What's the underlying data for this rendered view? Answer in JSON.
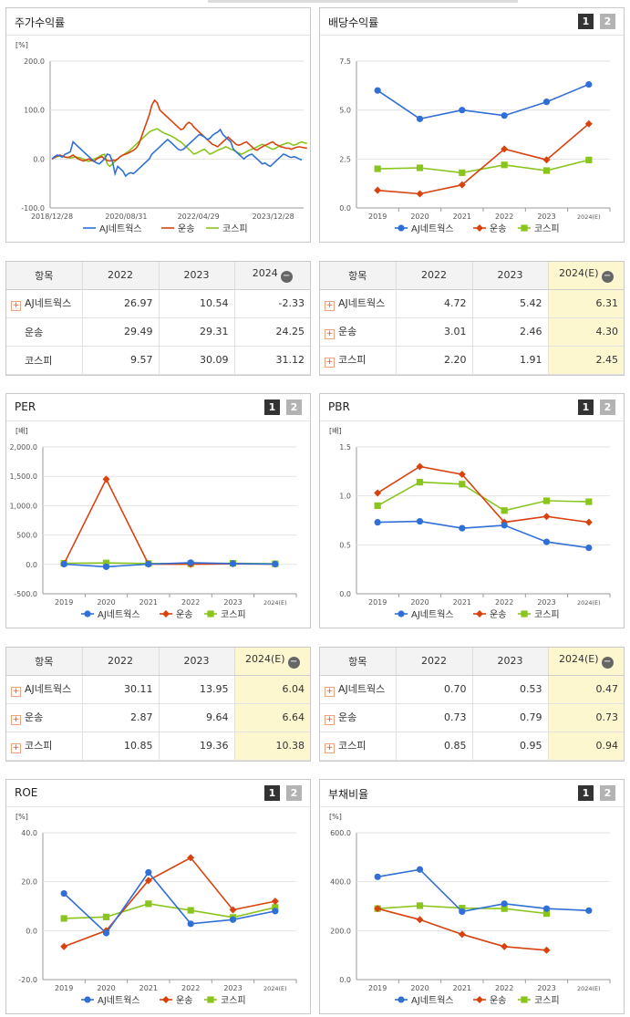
{
  "colors": {
    "ajn": "#2f6fd6",
    "transport": "#d8420f",
    "kospi": "#8ac51e"
  },
  "charts": [
    {
      "id": "stock",
      "title": "주가수익률",
      "pager": [],
      "chart_data": {
        "type": "line",
        "unit": "[%]",
        "x_tick_labels": [
          "2018/12/28",
          "2020/08/31",
          "2022/04/29",
          "2023/12/28"
        ],
        "y_ticks": [
          "200.0",
          "100.0",
          "0.0",
          "-100.0"
        ],
        "ylim": [
          -100,
          200
        ],
        "series": [
          {
            "name": "AJ네트웍스",
            "values": [
              0,
              5,
              8,
              6,
              4,
              10,
              12,
              15,
              35,
              30,
              25,
              20,
              15,
              10,
              5,
              0,
              -5,
              -8,
              -10,
              -5,
              0,
              10,
              8,
              -5,
              -30,
              -15,
              -20,
              -25,
              -35,
              -30,
              -28,
              -30,
              -25,
              -20,
              -15,
              -10,
              -5,
              0,
              10,
              15,
              20,
              25,
              30,
              35,
              40,
              35,
              30,
              25,
              20,
              18,
              20,
              25,
              30,
              35,
              40,
              45,
              50,
              48,
              45,
              40,
              42,
              48,
              52,
              55,
              60,
              50,
              45,
              40,
              35,
              20,
              15,
              10,
              5,
              0,
              5,
              8,
              10,
              5,
              0,
              -5,
              -10,
              -8,
              -12,
              -15,
              -10,
              -5,
              0,
              5,
              10,
              8,
              5,
              3,
              5,
              3,
              0,
              -2
            ]
          },
          {
            "name": "운송",
            "values": [
              0,
              3,
              6,
              8,
              6,
              4,
              3,
              5,
              8,
              4,
              0,
              -2,
              -4,
              -2,
              0,
              -3,
              -5,
              0,
              3,
              5,
              0,
              -3,
              -4,
              -2,
              -3,
              0,
              5,
              8,
              10,
              12,
              15,
              18,
              22,
              30,
              45,
              60,
              75,
              90,
              110,
              120,
              115,
              100,
              95,
              90,
              85,
              80,
              75,
              70,
              65,
              60,
              62,
              70,
              75,
              72,
              65,
              60,
              55,
              50,
              45,
              40,
              35,
              30,
              28,
              25,
              30,
              35,
              40,
              45,
              40,
              35,
              30,
              28,
              30,
              33,
              35,
              30,
              25,
              20,
              18,
              22,
              25,
              28,
              30,
              33,
              35,
              30,
              28,
              25,
              24,
              22,
              22,
              20,
              22,
              24,
              25,
              24,
              23,
              22
            ]
          },
          {
            "name": "코스피",
            "values": [
              0,
              3,
              5,
              7,
              6,
              4,
              3,
              2,
              3,
              5,
              3,
              2,
              0,
              -3,
              -5,
              -3,
              0,
              2,
              5,
              8,
              10,
              -10,
              -15,
              -10,
              -5,
              0,
              5,
              8,
              12,
              15,
              20,
              25,
              30,
              35,
              40,
              45,
              50,
              55,
              58,
              60,
              62,
              58,
              55,
              52,
              50,
              48,
              45,
              42,
              38,
              35,
              30,
              25,
              20,
              15,
              10,
              12,
              15,
              18,
              20,
              15,
              10,
              12,
              15,
              18,
              20,
              22,
              25,
              23,
              20,
              18,
              15,
              12,
              10,
              12,
              15,
              18,
              20,
              22,
              25,
              28,
              30,
              28,
              25,
              22,
              20,
              22,
              25,
              28,
              30,
              32,
              33,
              30,
              28,
              30,
              33,
              35,
              33,
              32
            ]
          }
        ]
      }
    },
    {
      "id": "dividend",
      "title": "배당수익률",
      "pager": [
        "1",
        "2"
      ],
      "chart_data": {
        "type": "line",
        "unit": "",
        "categories": [
          "2019",
          "2020",
          "2021",
          "2022",
          "2023",
          "2024(E)"
        ],
        "y_ticks": [
          "7.5",
          "5.0",
          "2.5",
          "0.0"
        ],
        "ylim": [
          0,
          7.5
        ],
        "series": [
          {
            "name": "AJ네트웍스",
            "values": [
              6.0,
              4.55,
              5.0,
              4.72,
              5.42,
              6.31
            ]
          },
          {
            "name": "운송",
            "values": [
              0.9,
              0.72,
              1.18,
              3.01,
              2.46,
              4.3
            ]
          },
          {
            "name": "코스피",
            "values": [
              2.0,
              2.05,
              1.8,
              2.2,
              1.91,
              2.45
            ]
          }
        ]
      }
    },
    {
      "id": "per",
      "title": "PER",
      "pager": [
        "1",
        "2"
      ],
      "chart_data": {
        "type": "line",
        "unit": "[배]",
        "categories": [
          "2019",
          "2020",
          "2021",
          "2022",
          "2023",
          "2024(E)"
        ],
        "y_ticks": [
          "2,000.0",
          "1,500.0",
          "1,000.0",
          "500.0",
          "0.0",
          "-500.0"
        ],
        "ylim": [
          -500,
          2000
        ],
        "series": [
          {
            "name": "AJ네트웍스",
            "values": [
              5,
              -40,
              5,
              30.11,
              13.95,
              6.04
            ]
          },
          {
            "name": "운송",
            "values": [
              10,
              1450,
              6,
              2.87,
              9.64,
              6.64
            ]
          },
          {
            "name": "코스피",
            "values": [
              20,
              25,
              15,
              10.85,
              19.36,
              10.38
            ]
          }
        ]
      }
    },
    {
      "id": "pbr",
      "title": "PBR",
      "pager": [
        "1",
        "2"
      ],
      "chart_data": {
        "type": "line",
        "unit": "[배]",
        "categories": [
          "2019",
          "2020",
          "2021",
          "2022",
          "2023",
          "2024(E)"
        ],
        "y_ticks": [
          "1.5",
          "1.0",
          "0.5",
          "0.0"
        ],
        "ylim": [
          0,
          1.5
        ],
        "series": [
          {
            "name": "AJ네트웍스",
            "values": [
              0.73,
              0.74,
              0.67,
              0.7,
              0.53,
              0.47
            ]
          },
          {
            "name": "운송",
            "values": [
              1.03,
              1.3,
              1.22,
              0.73,
              0.79,
              0.73
            ]
          },
          {
            "name": "코스피",
            "values": [
              0.9,
              1.14,
              1.12,
              0.85,
              0.95,
              0.94
            ]
          }
        ]
      }
    },
    {
      "id": "roe",
      "title": "ROE",
      "pager": [
        "1",
        "2"
      ],
      "chart_data": {
        "type": "line",
        "unit": "[%]",
        "categories": [
          "2019",
          "2020",
          "2021",
          "2022",
          "2023",
          "2024(E)"
        ],
        "y_ticks": [
          "40.0",
          "20.0",
          "0.0",
          "-20.0"
        ],
        "ylim": [
          -20,
          40
        ],
        "series": [
          {
            "name": "AJ네트웍스",
            "values": [
              15.2,
              -1.0,
              23.8,
              2.8,
              4.5,
              8.0
            ]
          },
          {
            "name": "운송",
            "values": [
              -6.5,
              0.0,
              20.5,
              29.8,
              8.5,
              12.0
            ]
          },
          {
            "name": "코스피",
            "values": [
              5.0,
              5.6,
              11.0,
              8.3,
              5.4,
              9.5
            ]
          }
        ]
      }
    },
    {
      "id": "debt",
      "title": "부채비율",
      "pager": [
        "1",
        "2"
      ],
      "chart_data": {
        "type": "line",
        "unit": "[%]",
        "categories": [
          "2019",
          "2020",
          "2021",
          "2022",
          "2023",
          "2024(E)"
        ],
        "y_ticks": [
          "600.0",
          "400.0",
          "200.0",
          "0.0"
        ],
        "ylim": [
          0,
          600
        ],
        "series": [
          {
            "name": "AJ네트웍스",
            "values": [
              420,
              450,
              278,
              310,
              290,
              282
            ]
          },
          {
            "name": "운송",
            "values": [
              290,
              245,
              185,
              135,
              120,
              null
            ]
          },
          {
            "name": "코스피",
            "values": [
              290,
              302,
              292,
              290,
              270,
              null
            ]
          }
        ]
      }
    }
  ],
  "legend": [
    "AJ네트웍스",
    "운송",
    "코스피"
  ],
  "tables": [
    {
      "id": "t_stock",
      "headers": [
        "항목",
        "2022",
        "2023",
        "2024"
      ],
      "collapse_icon": "minus-circle-icon",
      "highlight_last": false,
      "rows": [
        {
          "name": "AJ네트웍스",
          "expand": true,
          "values": [
            "26.97",
            "10.54",
            "-2.33"
          ]
        },
        {
          "name": "운송",
          "expand": false,
          "values": [
            "29.49",
            "29.31",
            "24.25"
          ]
        },
        {
          "name": "코스피",
          "expand": false,
          "values": [
            "9.57",
            "30.09",
            "31.12"
          ]
        }
      ]
    },
    {
      "id": "t_dividend",
      "headers": [
        "항목",
        "2022",
        "2023",
        "2024(E)"
      ],
      "collapse_icon": "minus-circle-icon",
      "highlight_last": true,
      "rows": [
        {
          "name": "AJ네트웍스",
          "expand": true,
          "values": [
            "4.72",
            "5.42",
            "6.31"
          ]
        },
        {
          "name": "운송",
          "expand": true,
          "values": [
            "3.01",
            "2.46",
            "4.30"
          ]
        },
        {
          "name": "코스피",
          "expand": true,
          "values": [
            "2.20",
            "1.91",
            "2.45"
          ]
        }
      ]
    },
    {
      "id": "t_per",
      "headers": [
        "항목",
        "2022",
        "2023",
        "2024(E)"
      ],
      "collapse_icon": "minus-circle-icon",
      "highlight_last": true,
      "rows": [
        {
          "name": "AJ네트웍스",
          "expand": true,
          "values": [
            "30.11",
            "13.95",
            "6.04"
          ]
        },
        {
          "name": "운송",
          "expand": true,
          "values": [
            "2.87",
            "9.64",
            "6.64"
          ]
        },
        {
          "name": "코스피",
          "expand": true,
          "values": [
            "10.85",
            "19.36",
            "10.38"
          ]
        }
      ]
    },
    {
      "id": "t_pbr",
      "headers": [
        "항목",
        "2022",
        "2023",
        "2024(E)"
      ],
      "collapse_icon": "minus-circle-icon",
      "highlight_last": true,
      "rows": [
        {
          "name": "AJ네트웍스",
          "expand": true,
          "values": [
            "0.70",
            "0.53",
            "0.47"
          ]
        },
        {
          "name": "운송",
          "expand": true,
          "values": [
            "0.73",
            "0.79",
            "0.73"
          ]
        },
        {
          "name": "코스피",
          "expand": true,
          "values": [
            "0.85",
            "0.95",
            "0.94"
          ]
        }
      ]
    }
  ]
}
